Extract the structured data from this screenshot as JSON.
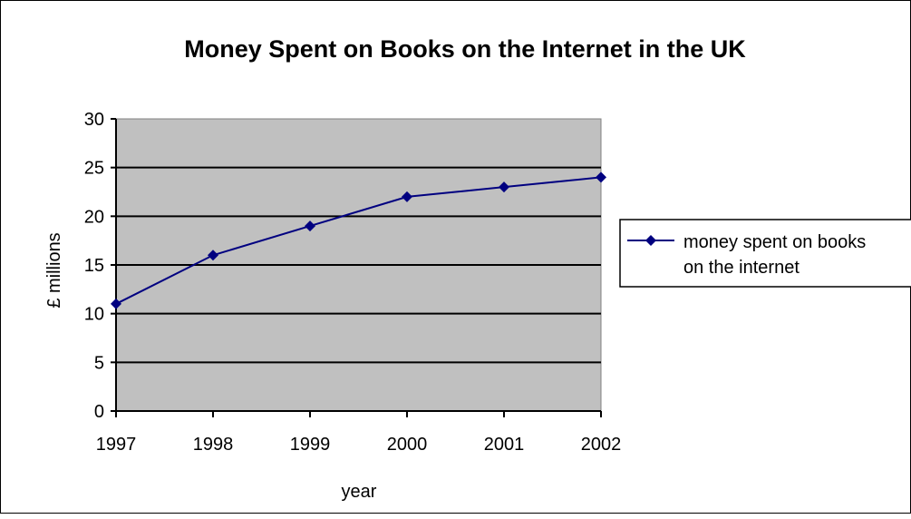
{
  "chart_data": {
    "type": "line",
    "title": "Money Spent on Books on the Internet in the UK",
    "xlabel": "year",
    "ylabel": "£ millions",
    "categories": [
      "1997",
      "1998",
      "1999",
      "2000",
      "2001",
      "2002"
    ],
    "series": [
      {
        "name": "money spent on books on the internet",
        "name_lines": [
          "money spent on books",
          "on the internet"
        ],
        "values": [
          11,
          16,
          19,
          22,
          23,
          24
        ]
      }
    ],
    "ylim": [
      0,
      30
    ],
    "yticks": [
      "0",
      "5",
      "10",
      "15",
      "20",
      "25",
      "30"
    ],
    "grid": true,
    "legend": "right",
    "colors": {
      "plot_bg": "#c0c0c0",
      "line": "#000080",
      "grid": "#000000"
    }
  }
}
